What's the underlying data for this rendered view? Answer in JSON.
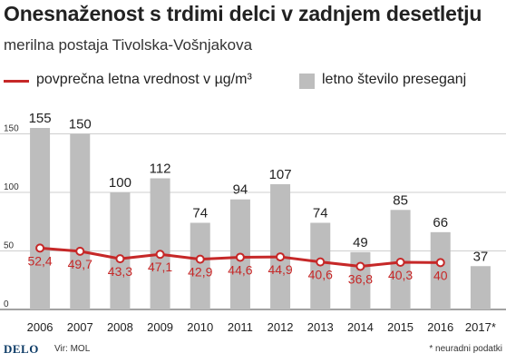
{
  "header": {
    "title": "Onesnaženost s trdimi delci v zadnjem desetletju",
    "subtitle": "merilna postaja Tivolska-Vošnjakova"
  },
  "legend": {
    "line_label": "povprečna letna vrednost v µg/m³",
    "bar_label": "letno število preseganj"
  },
  "footer": {
    "logo": "DELO",
    "source": "Vir: MOL",
    "note": "* neuradni podatki"
  },
  "colors": {
    "bar": "#bdbdbd",
    "line": "#c62828",
    "grid": "#cfcfcf"
  },
  "chart_data": {
    "type": "bar",
    "categories": [
      "2006",
      "2007",
      "2008",
      "2009",
      "2010",
      "2011",
      "2012",
      "2013",
      "2014",
      "2015",
      "2016",
      "2017*"
    ],
    "series": [
      {
        "name": "letno število preseganj",
        "type": "bar",
        "values": [
          155,
          150,
          100,
          112,
          74,
          94,
          107,
          74,
          49,
          85,
          66,
          37
        ]
      },
      {
        "name": "povprečna letna vrednost v µg/m³",
        "type": "line",
        "values": [
          52.4,
          49.7,
          43.3,
          47.1,
          42.9,
          44.6,
          44.9,
          40.6,
          36.8,
          40.3,
          40,
          null
        ],
        "labels": [
          "52,4",
          "49,7",
          "43,3",
          "47,1",
          "42,9",
          "44,6",
          "44,9",
          "40,6",
          "36,8",
          "40,3",
          "40",
          null
        ]
      }
    ],
    "yticks": [
      0,
      50,
      100,
      150
    ],
    "ylim": [
      0,
      160
    ],
    "grid": true,
    "legend_position": "top"
  }
}
